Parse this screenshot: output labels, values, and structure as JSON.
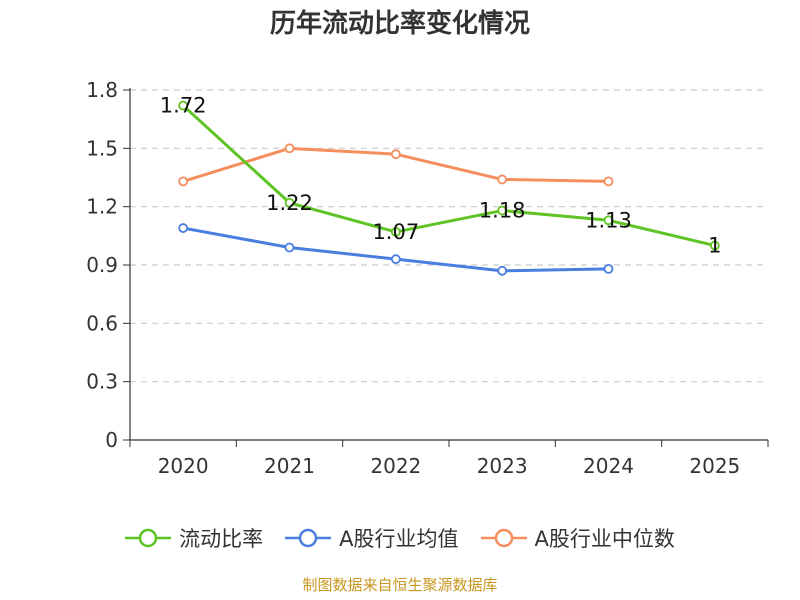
{
  "chart_data": {
    "type": "line",
    "title": "历年流动比率变化情况",
    "categories": [
      "2020",
      "2021",
      "2022",
      "2023",
      "2024",
      "2025"
    ],
    "ylim": [
      0,
      1.8
    ],
    "yticks": [
      "0",
      "0.3",
      "0.6",
      "0.9",
      "1.2",
      "1.5",
      "1.8"
    ],
    "grid": true,
    "legend_position": "bottom",
    "series": [
      {
        "name": "流动比率",
        "color": "#5ec324",
        "values": [
          1.72,
          1.22,
          1.07,
          1.18,
          1.13,
          1.0
        ],
        "labels": [
          "1.72",
          "1.22",
          "1.07",
          "1.18",
          "1.13",
          "1"
        ]
      },
      {
        "name": "A股行业均值",
        "color": "#4a7de0",
        "values": [
          1.09,
          0.99,
          0.93,
          0.87,
          0.88,
          null
        ]
      },
      {
        "name": "A股行业中位数",
        "color": "#f68d5c",
        "values": [
          1.33,
          1.5,
          1.47,
          1.34,
          1.33,
          null
        ]
      }
    ]
  },
  "source_note": "制图数据来自恒生聚源数据库"
}
